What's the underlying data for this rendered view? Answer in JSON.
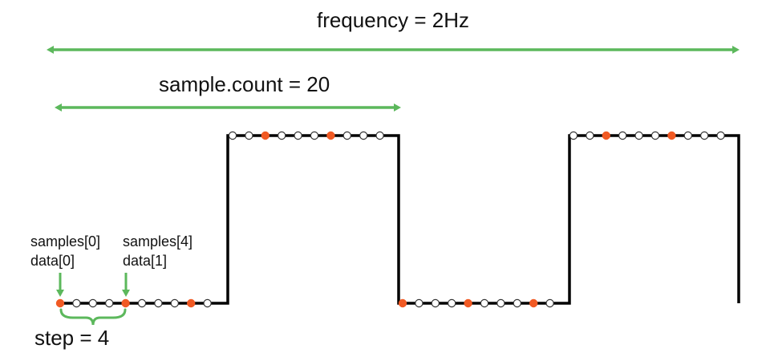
{
  "labels": {
    "frequency": "frequency = 2Hz",
    "sample_count": "sample.count = 20",
    "sample_first_index": "samples[0]",
    "data_first_index": "data[0]",
    "sample_fifth_index": "samples[4]",
    "data_second_index": "data[1]",
    "step": "step = 4"
  },
  "signal": {
    "type": "square-wave",
    "periods_shown": 2,
    "samples_per_half_period": 10,
    "highlight_every": 4,
    "levels": [
      "low",
      "high",
      "low",
      "high"
    ]
  },
  "colors": {
    "signal_line": "#000000",
    "arrow": "#5cb85c",
    "sample_highlight": "#f15a24",
    "sample_normal_fill": "#ffffff",
    "sample_normal_stroke": "#333333",
    "text": "#111111"
  },
  "icons": {
    "arrow_head": "arrowhead",
    "brace": "curly-brace"
  }
}
